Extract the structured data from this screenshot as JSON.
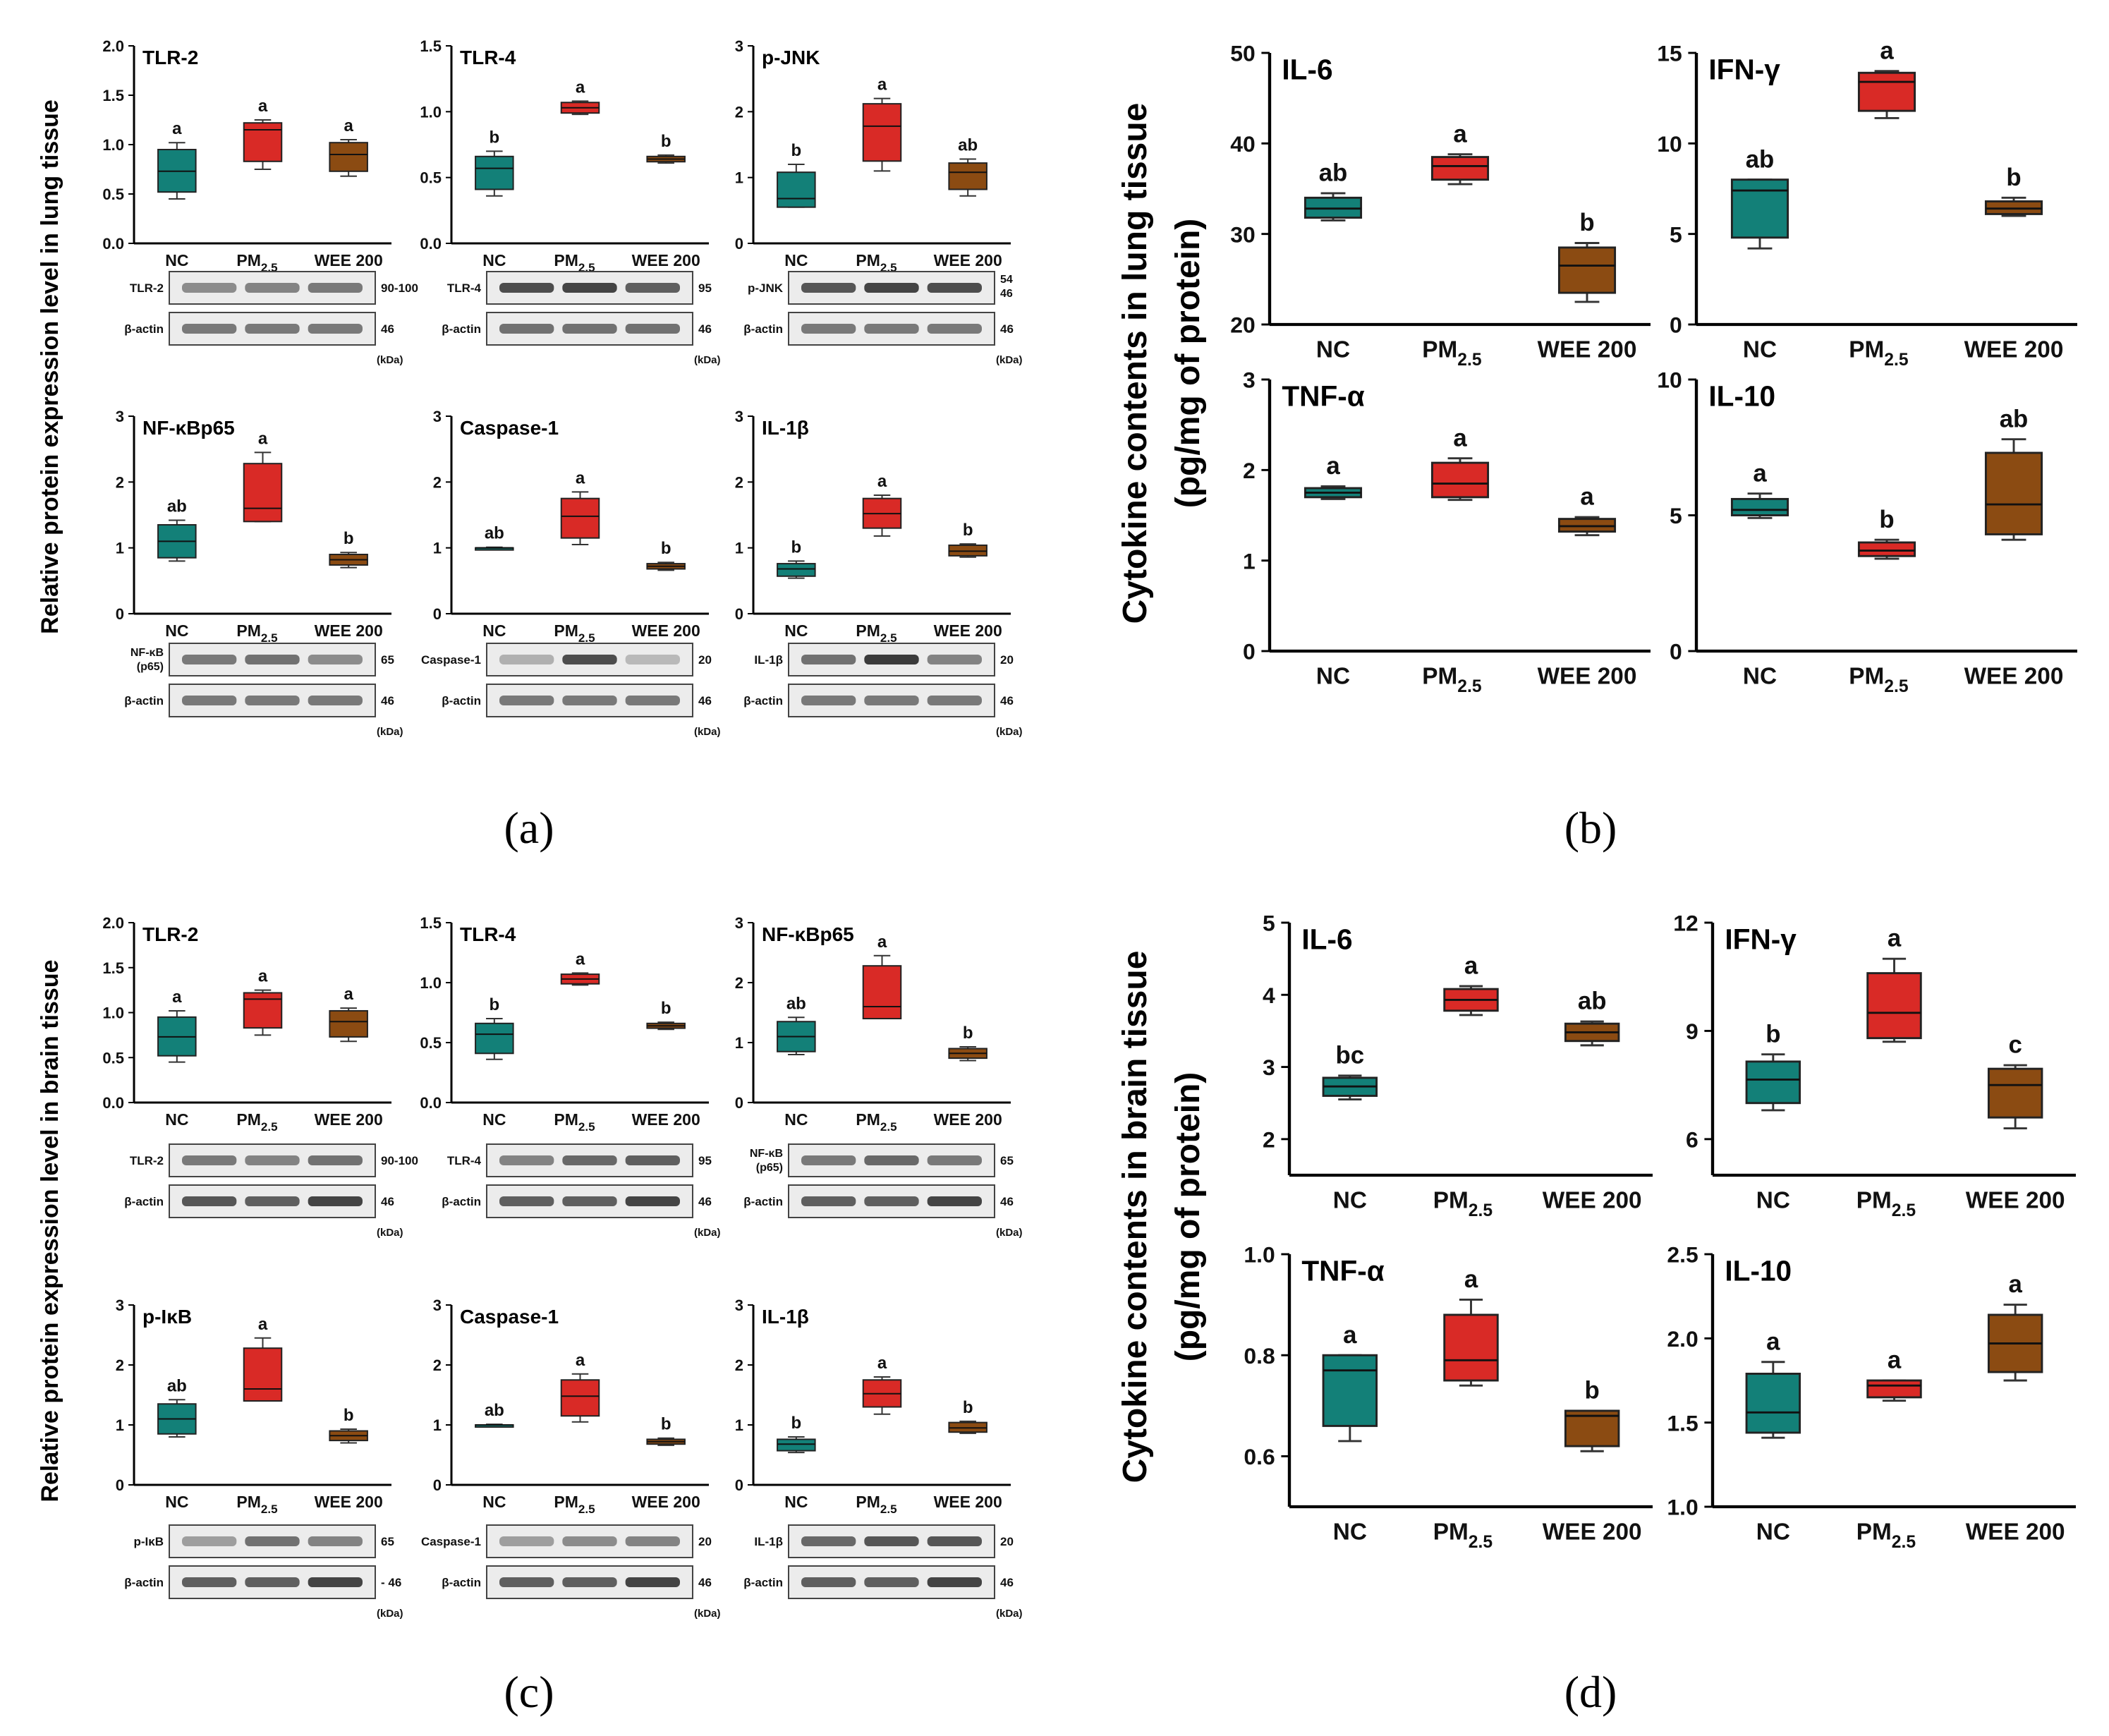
{
  "colors": {
    "NC": "#138078",
    "PM": "#d92a26",
    "WEE": "#8b4b12"
  },
  "groups": [
    "NC",
    "PM",
    "2.5",
    "WEE 200"
  ],
  "kda_unit": "(kDa)",
  "panel_labels": {
    "a": "(a)",
    "b": "(b)",
    "c": "(c)",
    "d": "(d)"
  },
  "ylabels": {
    "a": "Relative protein expression level in lung tissue",
    "b_line1": "Cytokine contents in lung tissue",
    "b_line2": "(pg/mg of protein)",
    "c": "Relative protein expression level in brain tissue",
    "d_line1": "Cytokine contents in brain tissue",
    "d_line2": "(pg/mg of protein)"
  },
  "chart_data": [
    {
      "id": "a1",
      "type": "box",
      "title": "TLR-2",
      "ylim": [
        0,
        2
      ],
      "yticks": [
        "0.0",
        "0.5",
        "1.0",
        "1.5",
        "2.0"
      ],
      "boxes": [
        {
          "group": "NC",
          "min": 0.45,
          "q1": 0.52,
          "median": 0.73,
          "q3": 0.95,
          "max": 1.02,
          "letter": "a"
        },
        {
          "group": "PM2.5",
          "min": 0.75,
          "q1": 0.83,
          "median": 1.15,
          "q3": 1.22,
          "max": 1.25,
          "letter": "a"
        },
        {
          "group": "WEE 200",
          "min": 0.68,
          "q1": 0.73,
          "median": 0.9,
          "q3": 1.02,
          "max": 1.05,
          "letter": "a"
        }
      ]
    },
    {
      "id": "a2",
      "type": "box",
      "title": "TLR-4",
      "ylim": [
        0,
        1.5
      ],
      "yticks": [
        "0.0",
        "0.5",
        "1.0",
        "1.5"
      ],
      "boxes": [
        {
          "group": "NC",
          "min": 0.36,
          "q1": 0.41,
          "median": 0.57,
          "q3": 0.66,
          "max": 0.7,
          "letter": "b"
        },
        {
          "group": "PM2.5",
          "min": 0.98,
          "q1": 0.99,
          "median": 1.03,
          "q3": 1.07,
          "max": 1.08,
          "letter": "a"
        },
        {
          "group": "WEE 200",
          "min": 0.61,
          "q1": 0.62,
          "median": 0.64,
          "q3": 0.66,
          "max": 0.67,
          "letter": "b"
        }
      ]
    },
    {
      "id": "a3",
      "type": "box",
      "title": "p-JNK",
      "ylim": [
        0,
        3
      ],
      "yticks": [
        "0",
        "1",
        "2",
        "3"
      ],
      "boxes": [
        {
          "group": "NC",
          "min": 0.55,
          "q1": 0.55,
          "median": 0.68,
          "q3": 1.08,
          "max": 1.2,
          "letter": "b"
        },
        {
          "group": "PM2.5",
          "min": 1.1,
          "q1": 1.25,
          "median": 1.78,
          "q3": 2.12,
          "max": 2.2,
          "letter": "a"
        },
        {
          "group": "WEE 200",
          "min": 0.72,
          "q1": 0.82,
          "median": 1.08,
          "q3": 1.22,
          "max": 1.28,
          "letter": "ab"
        }
      ]
    },
    {
      "id": "a4",
      "type": "box",
      "title": "NF-κBp65",
      "ylim": [
        0,
        3
      ],
      "yticks": [
        "0",
        "1",
        "2",
        "3"
      ],
      "boxes": [
        {
          "group": "NC",
          "min": 0.8,
          "q1": 0.85,
          "median": 1.1,
          "q3": 1.35,
          "max": 1.42,
          "letter": "ab"
        },
        {
          "group": "PM2.5",
          "min": 1.4,
          "q1": 1.4,
          "median": 1.6,
          "q3": 2.28,
          "max": 2.45,
          "letter": "a"
        },
        {
          "group": "WEE 200",
          "min": 0.7,
          "q1": 0.74,
          "median": 0.82,
          "q3": 0.9,
          "max": 0.93,
          "letter": "b"
        }
      ]
    },
    {
      "id": "a5",
      "type": "box",
      "title": "Caspase-1",
      "ylim": [
        0,
        3
      ],
      "yticks": [
        "0",
        "1",
        "2",
        "3"
      ],
      "boxes": [
        {
          "group": "NC",
          "min": 0.97,
          "q1": 0.98,
          "median": 1.0,
          "q3": 1.0,
          "max": 1.01,
          "letter": "ab"
        },
        {
          "group": "PM2.5",
          "min": 1.05,
          "q1": 1.15,
          "median": 1.48,
          "q3": 1.75,
          "max": 1.85,
          "letter": "a"
        },
        {
          "group": "WEE 200",
          "min": 0.66,
          "q1": 0.68,
          "median": 0.72,
          "q3": 0.76,
          "max": 0.78,
          "letter": "b"
        }
      ]
    },
    {
      "id": "a6",
      "type": "box",
      "title": "IL-1β",
      "ylim": [
        0,
        3
      ],
      "yticks": [
        "0",
        "1",
        "2",
        "3"
      ],
      "boxes": [
        {
          "group": "NC",
          "min": 0.54,
          "q1": 0.57,
          "median": 0.68,
          "q3": 0.76,
          "max": 0.8,
          "letter": "b"
        },
        {
          "group": "PM2.5",
          "min": 1.18,
          "q1": 1.3,
          "median": 1.52,
          "q3": 1.75,
          "max": 1.8,
          "letter": "a"
        },
        {
          "group": "WEE 200",
          "min": 0.86,
          "q1": 0.88,
          "median": 0.95,
          "q3": 1.04,
          "max": 1.06,
          "letter": "b"
        }
      ]
    },
    {
      "id": "b1",
      "type": "box",
      "title": "IL-6",
      "ylim": [
        20,
        50
      ],
      "yticks": [
        "20",
        "30",
        "40",
        "50"
      ],
      "boxes": [
        {
          "group": "NC",
          "min": 31.5,
          "q1": 31.8,
          "median": 32.8,
          "q3": 34.0,
          "max": 34.5,
          "letter": "ab"
        },
        {
          "group": "PM2.5",
          "min": 35.5,
          "q1": 36.0,
          "median": 37.5,
          "q3": 38.5,
          "max": 38.8,
          "letter": "a"
        },
        {
          "group": "WEE 200",
          "min": 22.5,
          "q1": 23.5,
          "median": 26.5,
          "q3": 28.5,
          "max": 29.0,
          "letter": "b"
        }
      ]
    },
    {
      "id": "b2",
      "type": "box",
      "title": "IFN-γ",
      "ylim": [
        0,
        15
      ],
      "yticks": [
        "0",
        "5",
        "10",
        "15"
      ],
      "boxes": [
        {
          "group": "NC",
          "min": 4.2,
          "q1": 4.8,
          "median": 7.4,
          "q3": 8.0,
          "max": 8.0,
          "letter": "ab"
        },
        {
          "group": "PM2.5",
          "min": 11.4,
          "q1": 11.8,
          "median": 13.4,
          "q3": 13.9,
          "max": 14.0,
          "letter": "a"
        },
        {
          "group": "WEE 200",
          "min": 6.0,
          "q1": 6.1,
          "median": 6.4,
          "q3": 6.8,
          "max": 7.0,
          "letter": "b"
        }
      ]
    },
    {
      "id": "b3",
      "type": "box",
      "title": "TNF-α",
      "ylim": [
        0,
        3
      ],
      "yticks": [
        "0",
        "1",
        "2",
        "3"
      ],
      "boxes": [
        {
          "group": "NC",
          "min": 1.68,
          "q1": 1.7,
          "median": 1.75,
          "q3": 1.8,
          "max": 1.82,
          "letter": "a"
        },
        {
          "group": "PM2.5",
          "min": 1.67,
          "q1": 1.7,
          "median": 1.85,
          "q3": 2.08,
          "max": 2.13,
          "letter": "a"
        },
        {
          "group": "WEE 200",
          "min": 1.28,
          "q1": 1.32,
          "median": 1.38,
          "q3": 1.46,
          "max": 1.48,
          "letter": "a"
        }
      ]
    },
    {
      "id": "b4",
      "type": "box",
      "title": "IL-10",
      "ylim": [
        0,
        10
      ],
      "yticks": [
        "0",
        "5",
        "10"
      ],
      "boxes": [
        {
          "group": "NC",
          "min": 4.9,
          "q1": 5.0,
          "median": 5.2,
          "q3": 5.6,
          "max": 5.8,
          "letter": "a"
        },
        {
          "group": "PM2.5",
          "min": 3.4,
          "q1": 3.5,
          "median": 3.7,
          "q3": 4.0,
          "max": 4.1,
          "letter": "b"
        },
        {
          "group": "WEE 200",
          "min": 4.1,
          "q1": 4.3,
          "median": 5.4,
          "q3": 7.3,
          "max": 7.8,
          "letter": "ab"
        }
      ]
    },
    {
      "id": "c1",
      "type": "box",
      "title": "TLR-2",
      "ylim": [
        0,
        2
      ],
      "yticks": [
        "0.0",
        "0.5",
        "1.0",
        "1.5",
        "2.0"
      ],
      "boxes": [
        {
          "group": "NC",
          "min": 0.45,
          "q1": 0.52,
          "median": 0.73,
          "q3": 0.95,
          "max": 1.02,
          "letter": "a"
        },
        {
          "group": "PM2.5",
          "min": 0.75,
          "q1": 0.83,
          "median": 1.15,
          "q3": 1.22,
          "max": 1.25,
          "letter": "a"
        },
        {
          "group": "WEE 200",
          "min": 0.68,
          "q1": 0.73,
          "median": 0.9,
          "q3": 1.02,
          "max": 1.05,
          "letter": "a"
        }
      ]
    },
    {
      "id": "c2",
      "type": "box",
      "title": "TLR-4",
      "ylim": [
        0,
        1.5
      ],
      "yticks": [
        "0.0",
        "0.5",
        "1.0",
        "1.5"
      ],
      "boxes": [
        {
          "group": "NC",
          "min": 0.36,
          "q1": 0.41,
          "median": 0.57,
          "q3": 0.66,
          "max": 0.7,
          "letter": "b"
        },
        {
          "group": "PM2.5",
          "min": 0.98,
          "q1": 0.99,
          "median": 1.03,
          "q3": 1.07,
          "max": 1.08,
          "letter": "a"
        },
        {
          "group": "WEE 200",
          "min": 0.61,
          "q1": 0.62,
          "median": 0.64,
          "q3": 0.66,
          "max": 0.67,
          "letter": "b"
        }
      ]
    },
    {
      "id": "c3",
      "type": "box",
      "title": "NF-κBp65",
      "ylim": [
        0,
        3
      ],
      "yticks": [
        "0",
        "1",
        "2",
        "3"
      ],
      "boxes": [
        {
          "group": "NC",
          "min": 0.8,
          "q1": 0.85,
          "median": 1.1,
          "q3": 1.35,
          "max": 1.42,
          "letter": "ab"
        },
        {
          "group": "PM2.5",
          "min": 1.4,
          "q1": 1.4,
          "median": 1.6,
          "q3": 2.28,
          "max": 2.45,
          "letter": "a"
        },
        {
          "group": "WEE 200",
          "min": 0.7,
          "q1": 0.74,
          "median": 0.82,
          "q3": 0.9,
          "max": 0.93,
          "letter": "b"
        }
      ]
    },
    {
      "id": "c4",
      "type": "box",
      "title": "p-IκB",
      "ylim": [
        0,
        3
      ],
      "yticks": [
        "0",
        "1",
        "2",
        "3"
      ],
      "boxes": [
        {
          "group": "NC",
          "min": 0.8,
          "q1": 0.85,
          "median": 1.1,
          "q3": 1.35,
          "max": 1.42,
          "letter": "ab"
        },
        {
          "group": "PM2.5",
          "min": 1.4,
          "q1": 1.4,
          "median": 1.6,
          "q3": 2.28,
          "max": 2.45,
          "letter": "a"
        },
        {
          "group": "WEE 200",
          "min": 0.7,
          "q1": 0.74,
          "median": 0.82,
          "q3": 0.9,
          "max": 0.93,
          "letter": "b"
        }
      ]
    },
    {
      "id": "c5",
      "type": "box",
      "title": "Caspase-1",
      "ylim": [
        0,
        3
      ],
      "yticks": [
        "0",
        "1",
        "2",
        "3"
      ],
      "boxes": [
        {
          "group": "NC",
          "min": 0.97,
          "q1": 0.98,
          "median": 1.0,
          "q3": 1.0,
          "max": 1.01,
          "letter": "ab"
        },
        {
          "group": "PM2.5",
          "min": 1.05,
          "q1": 1.15,
          "median": 1.48,
          "q3": 1.75,
          "max": 1.85,
          "letter": "a"
        },
        {
          "group": "WEE 200",
          "min": 0.66,
          "q1": 0.68,
          "median": 0.72,
          "q3": 0.76,
          "max": 0.78,
          "letter": "b"
        }
      ]
    },
    {
      "id": "c6",
      "type": "box",
      "title": "IL-1β",
      "ylim": [
        0,
        3
      ],
      "yticks": [
        "0",
        "1",
        "2",
        "3"
      ],
      "boxes": [
        {
          "group": "NC",
          "min": 0.54,
          "q1": 0.57,
          "median": 0.68,
          "q3": 0.76,
          "max": 0.8,
          "letter": "b"
        },
        {
          "group": "PM2.5",
          "min": 1.18,
          "q1": 1.3,
          "median": 1.52,
          "q3": 1.75,
          "max": 1.8,
          "letter": "a"
        },
        {
          "group": "WEE 200",
          "min": 0.86,
          "q1": 0.88,
          "median": 0.95,
          "q3": 1.04,
          "max": 1.06,
          "letter": "b"
        }
      ]
    },
    {
      "id": "d1",
      "type": "box",
      "title": "IL-6",
      "ylim": [
        1.5,
        5
      ],
      "yticks": [
        "2",
        "3",
        "4",
        "5"
      ],
      "boxes": [
        {
          "group": "NC",
          "min": 2.55,
          "q1": 2.6,
          "median": 2.73,
          "q3": 2.85,
          "max": 2.88,
          "letter": "bc"
        },
        {
          "group": "PM2.5",
          "min": 3.72,
          "q1": 3.78,
          "median": 3.93,
          "q3": 4.08,
          "max": 4.12,
          "letter": "a"
        },
        {
          "group": "WEE 200",
          "min": 3.3,
          "q1": 3.36,
          "median": 3.48,
          "q3": 3.6,
          "max": 3.63,
          "letter": "ab"
        }
      ]
    },
    {
      "id": "d2",
      "type": "box",
      "title": "IFN-γ",
      "ylim": [
        5,
        12
      ],
      "yticks": [
        "6",
        "9",
        "12"
      ],
      "boxes": [
        {
          "group": "NC",
          "min": 6.8,
          "q1": 7.0,
          "median": 7.65,
          "q3": 8.15,
          "max": 8.35,
          "letter": "b"
        },
        {
          "group": "PM2.5",
          "min": 8.7,
          "q1": 8.8,
          "median": 9.5,
          "q3": 10.6,
          "max": 11.0,
          "letter": "a"
        },
        {
          "group": "WEE 200",
          "min": 6.3,
          "q1": 6.6,
          "median": 7.5,
          "q3": 7.95,
          "max": 8.05,
          "letter": "c"
        }
      ]
    },
    {
      "id": "d3",
      "type": "box",
      "title": "TNF-α",
      "ylim": [
        0.5,
        1.0
      ],
      "yticks": [
        "0.6",
        "0.8",
        "1.0"
      ],
      "boxes": [
        {
          "group": "NC",
          "min": 0.63,
          "q1": 0.66,
          "median": 0.77,
          "q3": 0.8,
          "max": 0.8,
          "letter": "a"
        },
        {
          "group": "PM2.5",
          "min": 0.74,
          "q1": 0.75,
          "median": 0.79,
          "q3": 0.88,
          "max": 0.91,
          "letter": "a"
        },
        {
          "group": "WEE 200",
          "min": 0.61,
          "q1": 0.62,
          "median": 0.68,
          "q3": 0.69,
          "max": 0.69,
          "letter": "b"
        }
      ]
    },
    {
      "id": "d4",
      "type": "box",
      "title": "IL-10",
      "ylim": [
        1.0,
        2.5
      ],
      "yticks": [
        "1.0",
        "1.5",
        "2.0",
        "2.5"
      ],
      "boxes": [
        {
          "group": "NC",
          "min": 1.41,
          "q1": 1.44,
          "median": 1.56,
          "q3": 1.79,
          "max": 1.86,
          "letter": "a"
        },
        {
          "group": "PM2.5",
          "min": 1.63,
          "q1": 1.65,
          "median": 1.72,
          "q3": 1.75,
          "max": 1.75,
          "letter": "a"
        },
        {
          "group": "WEE 200",
          "min": 1.75,
          "q1": 1.8,
          "median": 1.97,
          "q3": 2.14,
          "max": 2.2,
          "letter": "a"
        }
      ]
    }
  ],
  "blots": [
    {
      "id": "a1",
      "rows": [
        {
          "label": "TLR-2",
          "kda": "90-100"
        },
        {
          "label": "β-actin",
          "kda": "46"
        }
      ]
    },
    {
      "id": "a2",
      "rows": [
        {
          "label": "TLR-4",
          "kda": "95"
        },
        {
          "label": "β-actin",
          "kda": "46"
        }
      ]
    },
    {
      "id": "a3",
      "rows": [
        {
          "label": "p-JNK",
          "kda": "54",
          "kda2": "46"
        },
        {
          "label": "β-actin",
          "kda": "46"
        }
      ]
    },
    {
      "id": "a4",
      "rows": [
        {
          "label": "NF-κB",
          "label2": "(p65)",
          "kda": "65"
        },
        {
          "label": "β-actin",
          "kda": "46"
        }
      ]
    },
    {
      "id": "a5",
      "rows": [
        {
          "label": "Caspase-1",
          "kda": "20"
        },
        {
          "label": "β-actin",
          "kda": "46"
        }
      ]
    },
    {
      "id": "a6",
      "rows": [
        {
          "label": "IL-1β",
          "kda": "20"
        },
        {
          "label": "β-actin",
          "kda": "46"
        }
      ]
    },
    {
      "id": "c1",
      "rows": [
        {
          "label": "TLR-2",
          "kda": "90-100"
        },
        {
          "label": "β-actin",
          "kda": "46"
        }
      ]
    },
    {
      "id": "c2",
      "rows": [
        {
          "label": "TLR-4",
          "kda": "95"
        },
        {
          "label": "β-actin",
          "kda": "46"
        }
      ]
    },
    {
      "id": "c3",
      "rows": [
        {
          "label": "NF-κB",
          "label2": "(p65)",
          "kda": "65"
        },
        {
          "label": "β-actin",
          "kda": "46"
        }
      ]
    },
    {
      "id": "c4",
      "rows": [
        {
          "label": "p-IκB",
          "kda": "65"
        },
        {
          "label": "β-actin",
          "kda": "- 46"
        }
      ]
    },
    {
      "id": "c5",
      "rows": [
        {
          "label": "Caspase-1",
          "kda": "20"
        },
        {
          "label": "β-actin",
          "kda": "46"
        }
      ]
    },
    {
      "id": "c6",
      "rows": [
        {
          "label": "IL-1β",
          "kda": "20"
        },
        {
          "label": "β-actin",
          "kda": "46"
        }
      ]
    }
  ]
}
